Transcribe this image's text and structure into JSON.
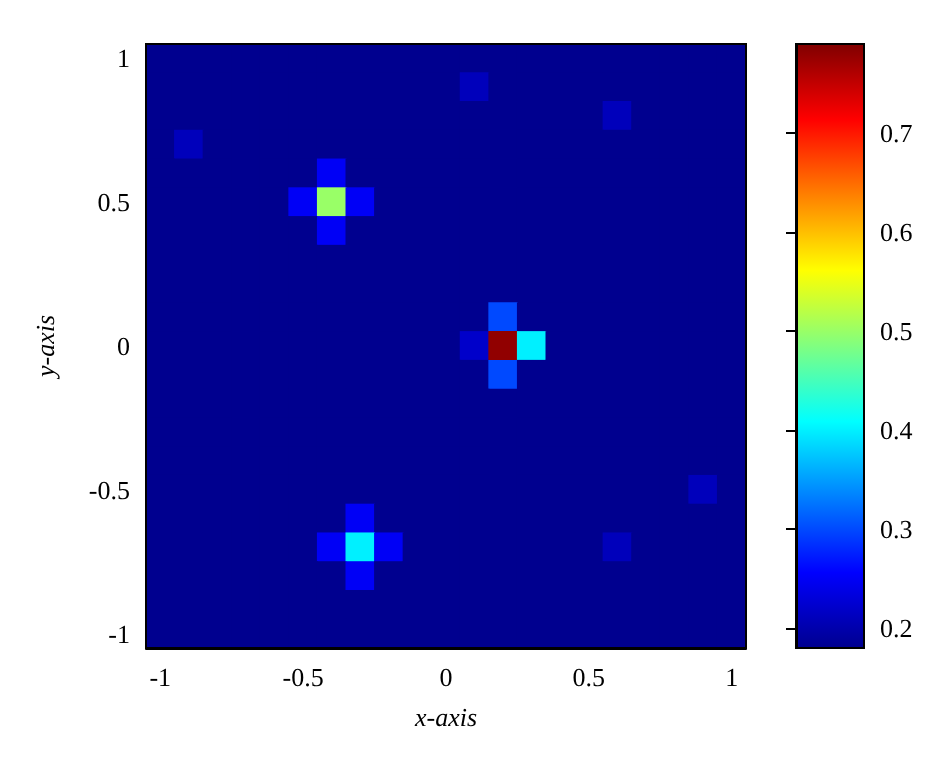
{
  "chart_data": {
    "type": "heatmap",
    "xlabel": "x-axis",
    "ylabel": "y-axis",
    "categories": [
      "-1",
      null,
      null,
      null,
      null,
      "-0.5",
      null,
      null,
      null,
      null,
      "0",
      null,
      null,
      null,
      null,
      "0.5",
      null,
      null,
      null,
      null,
      "1"
    ],
    "y_categories": [
      "1",
      null,
      null,
      null,
      null,
      "0.5",
      null,
      null,
      null,
      null,
      "0",
      null,
      null,
      null,
      null,
      "-0.5",
      null,
      null,
      null,
      null,
      "-1"
    ],
    "cells": [
      [
        0.18,
        0.18,
        0.18,
        0.18,
        0.18,
        0.18,
        0.18,
        0.18,
        0.18,
        0.18,
        0.18,
        0.18,
        0.18,
        0.18,
        0.18,
        0.18,
        0.18,
        0.18,
        0.18,
        0.18,
        0.18
      ],
      [
        0.18,
        0.18,
        0.18,
        0.18,
        0.18,
        0.18,
        0.18,
        0.18,
        0.18,
        0.18,
        0.18,
        0.21,
        0.18,
        0.18,
        0.18,
        0.18,
        0.18,
        0.18,
        0.18,
        0.18,
        0.18
      ],
      [
        0.18,
        0.18,
        0.18,
        0.18,
        0.18,
        0.18,
        0.18,
        0.18,
        0.18,
        0.18,
        0.18,
        0.18,
        0.18,
        0.18,
        0.18,
        0.18,
        0.21,
        0.18,
        0.18,
        0.18,
        0.18
      ],
      [
        0.18,
        0.21,
        0.18,
        0.18,
        0.18,
        0.18,
        0.18,
        0.18,
        0.18,
        0.18,
        0.18,
        0.18,
        0.18,
        0.18,
        0.18,
        0.18,
        0.18,
        0.18,
        0.18,
        0.18,
        0.18
      ],
      [
        0.18,
        0.18,
        0.18,
        0.18,
        0.18,
        0.18,
        0.25,
        0.18,
        0.18,
        0.18,
        0.18,
        0.18,
        0.18,
        0.18,
        0.18,
        0.18,
        0.18,
        0.18,
        0.18,
        0.18,
        0.18
      ],
      [
        0.18,
        0.18,
        0.18,
        0.18,
        0.18,
        0.25,
        0.5,
        0.25,
        0.18,
        0.18,
        0.18,
        0.18,
        0.18,
        0.18,
        0.18,
        0.18,
        0.18,
        0.18,
        0.18,
        0.18,
        0.18
      ],
      [
        0.18,
        0.18,
        0.18,
        0.18,
        0.18,
        0.18,
        0.25,
        0.18,
        0.18,
        0.18,
        0.18,
        0.18,
        0.18,
        0.18,
        0.18,
        0.18,
        0.18,
        0.18,
        0.18,
        0.18,
        0.18
      ],
      [
        0.18,
        0.18,
        0.18,
        0.18,
        0.18,
        0.18,
        0.18,
        0.18,
        0.18,
        0.18,
        0.18,
        0.18,
        0.18,
        0.18,
        0.18,
        0.18,
        0.18,
        0.18,
        0.18,
        0.18,
        0.18
      ],
      [
        0.18,
        0.18,
        0.18,
        0.18,
        0.18,
        0.18,
        0.18,
        0.18,
        0.18,
        0.18,
        0.18,
        0.18,
        0.18,
        0.18,
        0.18,
        0.18,
        0.18,
        0.18,
        0.18,
        0.18,
        0.18
      ],
      [
        0.18,
        0.18,
        0.18,
        0.18,
        0.18,
        0.18,
        0.18,
        0.18,
        0.18,
        0.18,
        0.18,
        0.18,
        0.3,
        0.18,
        0.18,
        0.18,
        0.18,
        0.18,
        0.18,
        0.18,
        0.18
      ],
      [
        0.18,
        0.18,
        0.18,
        0.18,
        0.18,
        0.18,
        0.18,
        0.18,
        0.18,
        0.18,
        0.18,
        0.22,
        0.78,
        0.4,
        0.18,
        0.18,
        0.18,
        0.18,
        0.18,
        0.18,
        0.18
      ],
      [
        0.18,
        0.18,
        0.18,
        0.18,
        0.18,
        0.18,
        0.18,
        0.18,
        0.18,
        0.18,
        0.18,
        0.18,
        0.3,
        0.18,
        0.18,
        0.18,
        0.18,
        0.18,
        0.18,
        0.18,
        0.18
      ],
      [
        0.18,
        0.18,
        0.18,
        0.18,
        0.18,
        0.18,
        0.18,
        0.18,
        0.18,
        0.18,
        0.18,
        0.18,
        0.18,
        0.18,
        0.18,
        0.18,
        0.18,
        0.18,
        0.18,
        0.18,
        0.18
      ],
      [
        0.18,
        0.18,
        0.18,
        0.18,
        0.18,
        0.18,
        0.18,
        0.18,
        0.18,
        0.18,
        0.18,
        0.18,
        0.18,
        0.18,
        0.18,
        0.18,
        0.18,
        0.18,
        0.18,
        0.18,
        0.18
      ],
      [
        0.18,
        0.18,
        0.18,
        0.18,
        0.18,
        0.18,
        0.18,
        0.18,
        0.18,
        0.18,
        0.18,
        0.18,
        0.18,
        0.18,
        0.18,
        0.18,
        0.18,
        0.18,
        0.18,
        0.18,
        0.18
      ],
      [
        0.18,
        0.18,
        0.18,
        0.18,
        0.18,
        0.18,
        0.18,
        0.18,
        0.18,
        0.18,
        0.18,
        0.18,
        0.18,
        0.18,
        0.18,
        0.18,
        0.18,
        0.18,
        0.18,
        0.21,
        0.18
      ],
      [
        0.18,
        0.18,
        0.18,
        0.18,
        0.18,
        0.18,
        0.18,
        0.25,
        0.18,
        0.18,
        0.18,
        0.18,
        0.18,
        0.18,
        0.18,
        0.18,
        0.18,
        0.18,
        0.18,
        0.18,
        0.18
      ],
      [
        0.18,
        0.18,
        0.18,
        0.18,
        0.18,
        0.18,
        0.25,
        0.4,
        0.25,
        0.18,
        0.18,
        0.18,
        0.18,
        0.18,
        0.18,
        0.18,
        0.21,
        0.18,
        0.18,
        0.18,
        0.18
      ],
      [
        0.18,
        0.18,
        0.18,
        0.18,
        0.18,
        0.18,
        0.18,
        0.25,
        0.18,
        0.18,
        0.18,
        0.18,
        0.18,
        0.18,
        0.18,
        0.18,
        0.18,
        0.18,
        0.18,
        0.18,
        0.18
      ],
      [
        0.18,
        0.18,
        0.18,
        0.18,
        0.18,
        0.18,
        0.18,
        0.18,
        0.18,
        0.18,
        0.18,
        0.18,
        0.18,
        0.18,
        0.18,
        0.18,
        0.18,
        0.18,
        0.18,
        0.18,
        0.18
      ],
      [
        0.18,
        0.18,
        0.18,
        0.18,
        0.18,
        0.18,
        0.18,
        0.18,
        0.18,
        0.18,
        0.18,
        0.18,
        0.18,
        0.18,
        0.18,
        0.18,
        0.18,
        0.18,
        0.18,
        0.18,
        0.18
      ]
    ],
    "clim": [
      0.18,
      0.79
    ],
    "cticks": [
      0.2,
      0.3,
      0.4,
      0.5,
      0.6,
      0.7
    ]
  }
}
